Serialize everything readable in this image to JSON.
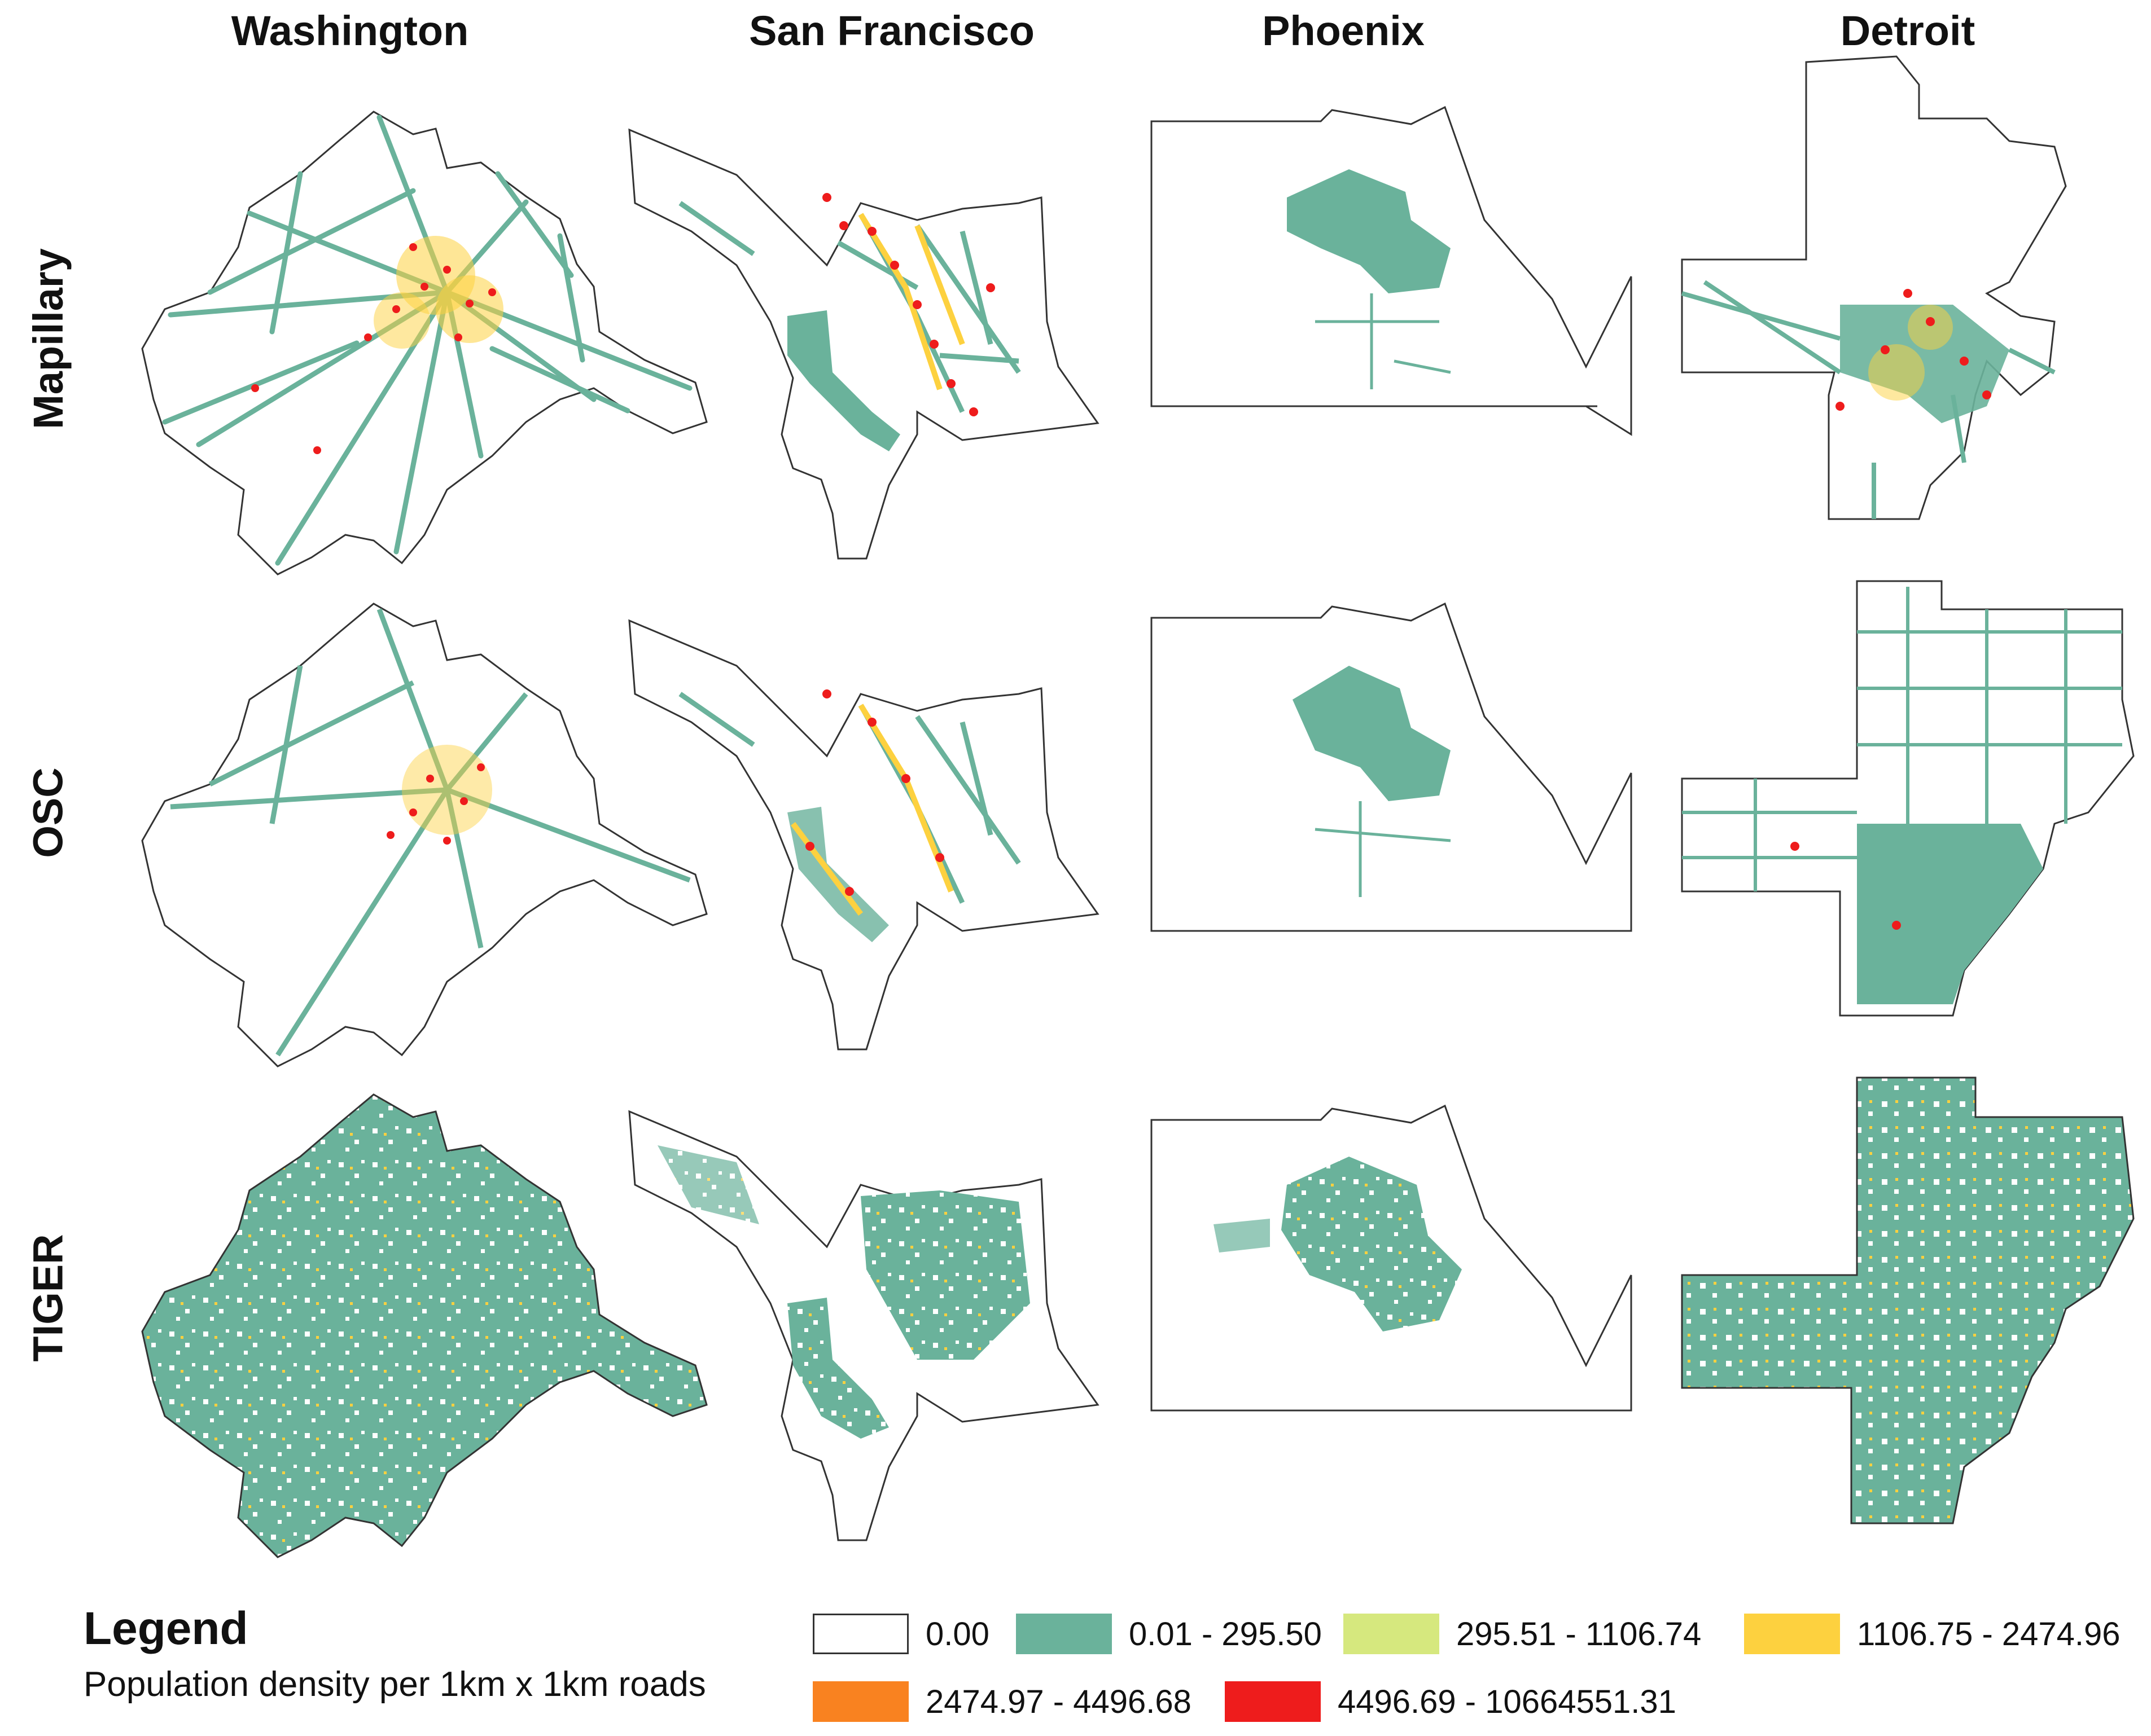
{
  "columns": [
    "Washington",
    "San Francisco",
    "Phoenix",
    "Detroit"
  ],
  "rows": [
    "Mapillary",
    "OSC",
    "TIGER"
  ],
  "legend": {
    "title": "Legend",
    "subtitle": "Population density per 1km x 1km roads",
    "items": [
      {
        "label": "0.00",
        "color": "#ffffff"
      },
      {
        "label": "0.01 - 295.50",
        "color": "#6ab29b"
      },
      {
        "label": "295.51 - 1106.74",
        "color": "#d6e87e"
      },
      {
        "label": "1106.75 - 2474.96",
        "color": "#fdd13f"
      },
      {
        "label": "2474.97 - 4496.68",
        "color": "#f98220"
      },
      {
        "label": "4496.69 - 10664551.31",
        "color": "#ee1c1c"
      }
    ]
  }
}
